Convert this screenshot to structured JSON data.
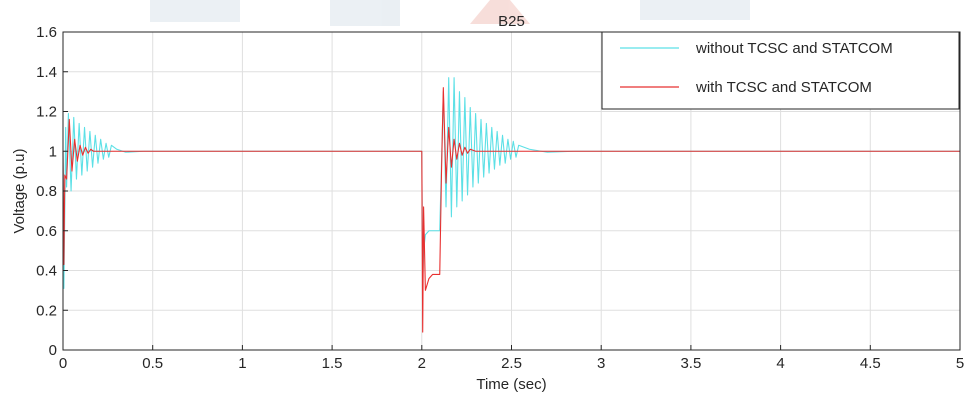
{
  "chart_data": {
    "type": "line",
    "title": "B25",
    "xlabel": "Time (sec)",
    "ylabel": "Voltage (p.u)",
    "xlim": [
      0,
      5
    ],
    "ylim": [
      0,
      1.6
    ],
    "xticks": [
      0,
      0.5,
      1,
      1.5,
      2,
      2.5,
      3,
      3.5,
      4,
      4.5,
      5
    ],
    "xtick_labels": [
      "0",
      "0.5",
      "1",
      "1.5",
      "2",
      "2.5",
      "3",
      "3.5",
      "4",
      "4.5",
      "5"
    ],
    "yticks": [
      0,
      0.2,
      0.4,
      0.6,
      0.8,
      1,
      1.2,
      1.4,
      1.6
    ],
    "ytick_labels": [
      "0",
      "0.2",
      "0.4",
      "0.6",
      "0.8",
      "1",
      "1.2",
      "1.4",
      "1.6"
    ],
    "grid": true,
    "legend_position": "top-right",
    "series": [
      {
        "name": "without TCSC and STATCOM",
        "color": "#5ce0e6",
        "x": [
          0,
          0.005,
          0.01,
          0.015,
          0.02,
          0.03,
          0.045,
          0.06,
          0.075,
          0.09,
          0.105,
          0.12,
          0.135,
          0.15,
          0.165,
          0.18,
          0.195,
          0.21,
          0.225,
          0.24,
          0.255,
          0.27,
          0.3,
          0.35,
          0.45,
          0.6,
          1.0,
          1.5,
          2.0,
          2.005,
          2.01,
          2.02,
          2.04,
          2.06,
          2.08,
          2.1,
          2.11,
          2.12,
          2.135,
          2.15,
          2.165,
          2.18,
          2.195,
          2.21,
          2.225,
          2.24,
          2.255,
          2.27,
          2.285,
          2.3,
          2.315,
          2.33,
          2.345,
          2.36,
          2.375,
          2.39,
          2.405,
          2.42,
          2.435,
          2.45,
          2.465,
          2.48,
          2.495,
          2.51,
          2.525,
          2.54,
          2.6,
          2.7,
          2.85,
          3.0,
          3.5,
          4.0,
          4.5,
          5.0
        ],
        "y": [
          1,
          0.31,
          0.7,
          1.12,
          0.82,
          1.19,
          0.8,
          1.17,
          0.86,
          1.14,
          0.88,
          1.12,
          0.9,
          1.1,
          0.92,
          1.08,
          0.94,
          1.06,
          0.96,
          1.04,
          0.97,
          1.03,
          1.01,
          0.995,
          1.0,
          1.0,
          1.0,
          1.0,
          1.0,
          0.34,
          0.5,
          0.58,
          0.6,
          0.6,
          0.6,
          0.6,
          0.95,
          1.3,
          0.72,
          1.37,
          0.67,
          1.37,
          0.72,
          1.3,
          0.75,
          1.27,
          0.78,
          1.22,
          0.82,
          1.19,
          0.84,
          1.16,
          0.87,
          1.14,
          0.89,
          1.12,
          0.91,
          1.1,
          0.93,
          1.08,
          0.94,
          1.06,
          0.96,
          1.05,
          0.97,
          1.03,
          1.01,
          0.995,
          1.0,
          1.0,
          1.0,
          1.0,
          1.0,
          1.0
        ]
      },
      {
        "name": "with TCSC and STATCOM",
        "color": "#e83030",
        "x": [
          0,
          0.005,
          0.01,
          0.02,
          0.035,
          0.05,
          0.065,
          0.08,
          0.095,
          0.11,
          0.125,
          0.14,
          0.155,
          0.17,
          0.2,
          0.25,
          0.4,
          1.0,
          1.5,
          2.0,
          2.005,
          2.01,
          2.02,
          2.04,
          2.06,
          2.08,
          2.1,
          2.11,
          2.12,
          2.135,
          2.15,
          2.165,
          2.18,
          2.195,
          2.21,
          2.225,
          2.24,
          2.255,
          2.27,
          2.3,
          2.35,
          2.45,
          2.6,
          3.0,
          3.5,
          4.0,
          4.5,
          5.0
        ],
        "y": [
          1,
          0.43,
          0.88,
          0.86,
          1.16,
          0.9,
          1.06,
          0.95,
          1.03,
          0.98,
          1.02,
          0.99,
          1.01,
          1.0,
          1.0,
          1.0,
          1.0,
          1.0,
          1.0,
          1.0,
          0.09,
          0.72,
          0.3,
          0.36,
          0.38,
          0.38,
          0.38,
          0.9,
          1.32,
          0.84,
          1.12,
          0.92,
          1.06,
          0.96,
          1.04,
          0.98,
          1.02,
          0.99,
          1.01,
          1.0,
          1.0,
          1.0,
          1.0,
          1.0,
          1.0,
          1.0,
          1.0,
          1.0
        ]
      }
    ]
  }
}
